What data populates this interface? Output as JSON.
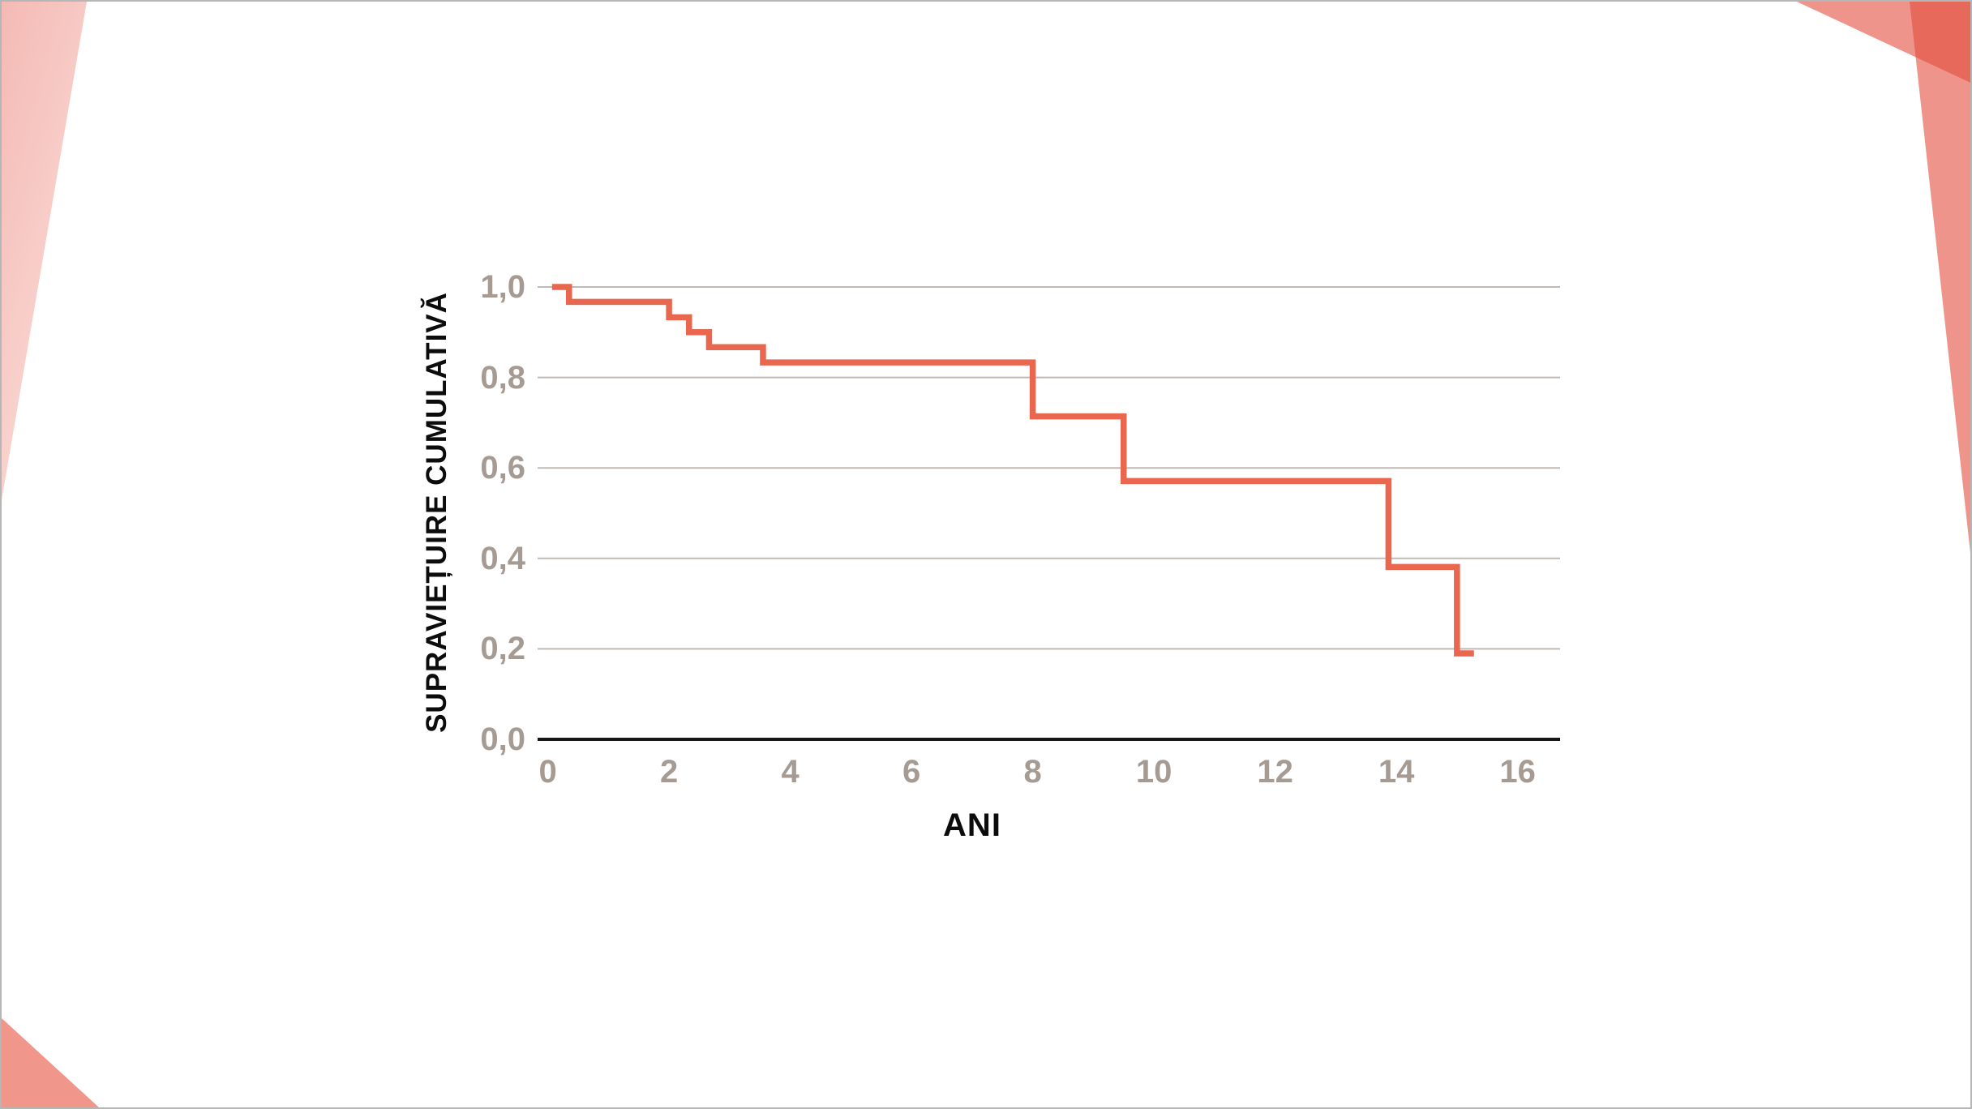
{
  "slide": {
    "background": "#ffffff",
    "border_color": "#b6b6b6"
  },
  "theme": {
    "pink_strong": "#f4bab4",
    "pink_light": "#fbdedb",
    "salmon_solid": "#f0968a",
    "corner_rgba": "rgba(227,77,62,0.60)",
    "tick_color": "#a59b93",
    "grid_color": "#c0bab4",
    "axis_color": "#161616"
  },
  "decorations": [
    {
      "name": "top-left-pink-wedge"
    },
    {
      "name": "bottom-left-salmon-triangle"
    },
    {
      "name": "top-right-salmon-band"
    },
    {
      "name": "top-right-salmon-spike"
    }
  ],
  "chart_data": {
    "type": "line",
    "subtype": "kaplan-meier-step",
    "title": "",
    "xlabel": "ANI",
    "ylabel": "SUPRAVIEȚUIRE CUMULATIVĂ",
    "xlim": [
      0,
      16.7
    ],
    "ylim": [
      0.0,
      1.0
    ],
    "grid": "horizontal",
    "legend": "none",
    "line_color": "#e9674f",
    "x_ticks": [
      "0",
      "2",
      "4",
      "6",
      "8",
      "10",
      "12",
      "14",
      "16"
    ],
    "x_tick_values": [
      0,
      2,
      4,
      6,
      8,
      10,
      12,
      14,
      16
    ],
    "y_ticks": [
      "0,0",
      "0,2",
      "0,4",
      "0,6",
      "0,8",
      "1,0"
    ],
    "y_tick_values": [
      0.0,
      0.2,
      0.4,
      0.6,
      0.8,
      1.0
    ],
    "series": [
      {
        "name": "supravietuire-cumulativa",
        "start": [
          0.07,
          1.0
        ],
        "step_points": [
          [
            0.35,
            0.967
          ],
          [
            2.0,
            0.933
          ],
          [
            2.33,
            0.9
          ],
          [
            2.66,
            0.867
          ],
          [
            3.55,
            0.833
          ],
          [
            8.0,
            0.714
          ],
          [
            9.5,
            0.571
          ],
          [
            13.87,
            0.381
          ],
          [
            15.0,
            0.19
          ]
        ],
        "end_x": 15.28
      }
    ]
  }
}
